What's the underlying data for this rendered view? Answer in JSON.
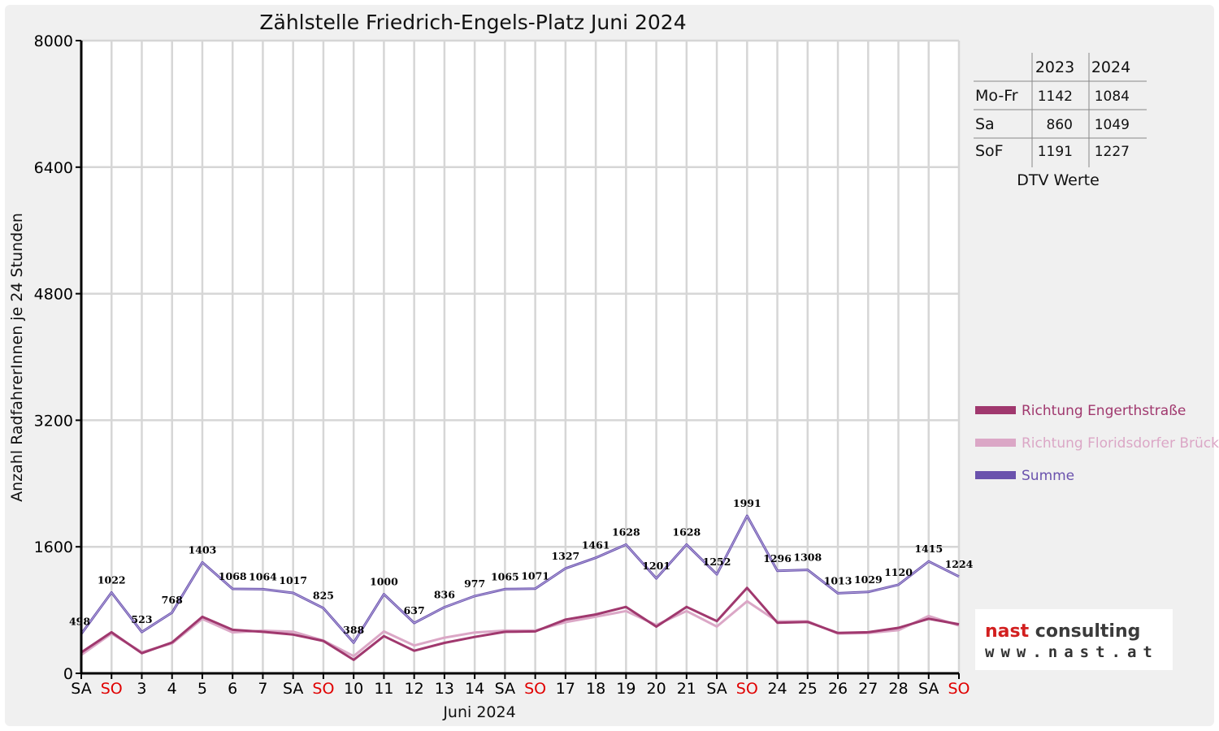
{
  "chart_data": {
    "type": "line",
    "title": "Zählstelle Friedrich-Engels-Platz Juni 2024",
    "xlabel": "Juni 2024",
    "ylabel": "Anzahl RadfahrerInnen je 24 Stunden",
    "ylim": [
      0,
      8000
    ],
    "yticks": [
      0,
      1600,
      3200,
      4800,
      6400,
      8000
    ],
    "grid": true,
    "legend_position": "right",
    "categories": [
      "SA",
      "SO",
      "3",
      "4",
      "5",
      "6",
      "7",
      "SA",
      "SO",
      "10",
      "11",
      "12",
      "13",
      "14",
      "SA",
      "SO",
      "17",
      "18",
      "19",
      "20",
      "21",
      "SA",
      "SO",
      "24",
      "25",
      "26",
      "27",
      "28",
      "SA",
      "SO"
    ],
    "weekend_flags": [
      false,
      true,
      false,
      false,
      false,
      false,
      false,
      false,
      true,
      false,
      false,
      false,
      false,
      false,
      false,
      true,
      false,
      false,
      false,
      false,
      false,
      false,
      true,
      false,
      false,
      false,
      false,
      false,
      false,
      true
    ],
    "series": [
      {
        "name": "Richtung Engerthstraße",
        "color": "#a0386e",
        "values": [
          265,
          520,
          255,
          390,
          715,
          550,
          525,
          490,
          410,
          170,
          470,
          285,
          385,
          460,
          525,
          530,
          680,
          745,
          840,
          590,
          840,
          660,
          1080,
          640,
          650,
          510,
          520,
          575,
          690,
          620
        ]
      },
      {
        "name": "Richtung Floridsdorfer Brücke",
        "color": "#dba7c6",
        "values": [
          233,
          502,
          268,
          378,
          688,
          518,
          539,
          527,
          415,
          218,
          530,
          352,
          451,
          517,
          540,
          541,
          647,
          716,
          788,
          611,
          788,
          592,
          911,
          656,
          658,
          503,
          509,
          545,
          725,
          604
        ]
      },
      {
        "name": "Summe",
        "color": "#6a52ad",
        "values": [
          498,
          1022,
          523,
          768,
          1403,
          1068,
          1064,
          1017,
          825,
          388,
          1000,
          637,
          836,
          977,
          1065,
          1071,
          1327,
          1461,
          1628,
          1201,
          1628,
          1252,
          1991,
          1296,
          1308,
          1013,
          1029,
          1120,
          1415,
          1224
        ]
      }
    ],
    "data_labels_series": "Summe"
  },
  "dtv_table": {
    "caption": "DTV Werte",
    "columns": [
      "",
      "2023",
      "2024"
    ],
    "rows": [
      {
        "label": "Mo-Fr",
        "v2023": "1142",
        "v2024": "1084"
      },
      {
        "label": "Sa",
        "v2023": "860",
        "v2024": "1049"
      },
      {
        "label": "SoF",
        "v2023": "1191",
        "v2024": "1227"
      }
    ]
  },
  "logo": {
    "brand_part1": "nast",
    "brand_part2": "consulting",
    "url": "www.nast.at",
    "colors": {
      "brand_red": "#d21f1f",
      "brand_gray": "#3b3b3b"
    }
  }
}
